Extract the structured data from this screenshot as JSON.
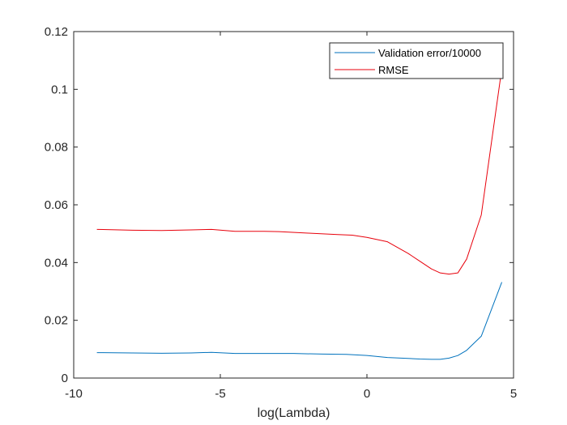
{
  "chart_data": {
    "type": "line",
    "title": "",
    "xlabel": "log(Lambda)",
    "ylabel": "",
    "xlim": [
      -10,
      5
    ],
    "ylim": [
      0,
      0.12
    ],
    "xticks": [
      -10,
      -5,
      0,
      5
    ],
    "xtick_labels": [
      "-10",
      "-5",
      "0",
      "5"
    ],
    "yticks": [
      0,
      0.02,
      0.04,
      0.06,
      0.08,
      0.1,
      0.12
    ],
    "ytick_labels": [
      "0",
      "0.02",
      "0.04",
      "0.06",
      "0.08",
      "0.1",
      "0.12"
    ],
    "grid": false,
    "legend_position": "top-right",
    "series": [
      {
        "name": "Validation error/10000",
        "color": "#0072BD",
        "x": [
          -9.21,
          -8.0,
          -7.0,
          -6.0,
          -5.3,
          -4.5,
          -3.5,
          -2.5,
          -1.5,
          -0.7,
          0.0,
          0.7,
          1.4,
          1.8,
          2.2,
          2.5,
          2.8,
          3.1,
          3.4,
          3.9,
          4.6
        ],
        "y": [
          0.0088,
          0.0087,
          0.0086,
          0.0087,
          0.0089,
          0.0085,
          0.0085,
          0.0085,
          0.0083,
          0.0082,
          0.0078,
          0.0071,
          0.0068,
          0.0066,
          0.0065,
          0.0065,
          0.0069,
          0.0078,
          0.0096,
          0.0145,
          0.0332
        ]
      },
      {
        "name": "RMSE",
        "color": "#E8000B",
        "x": [
          -9.21,
          -8.0,
          -7.0,
          -6.0,
          -5.3,
          -4.5,
          -3.5,
          -3.0,
          -2.0,
          -1.0,
          -0.5,
          0.0,
          0.7,
          1.4,
          1.8,
          2.2,
          2.5,
          2.8,
          3.1,
          3.4,
          3.9,
          4.6
        ],
        "y": [
          0.0515,
          0.0512,
          0.0511,
          0.0513,
          0.0515,
          0.0508,
          0.0508,
          0.0507,
          0.0502,
          0.0497,
          0.0495,
          0.0487,
          0.0472,
          0.0432,
          0.0405,
          0.0378,
          0.0364,
          0.036,
          0.0364,
          0.0412,
          0.0565,
          0.1072
        ]
      }
    ]
  }
}
